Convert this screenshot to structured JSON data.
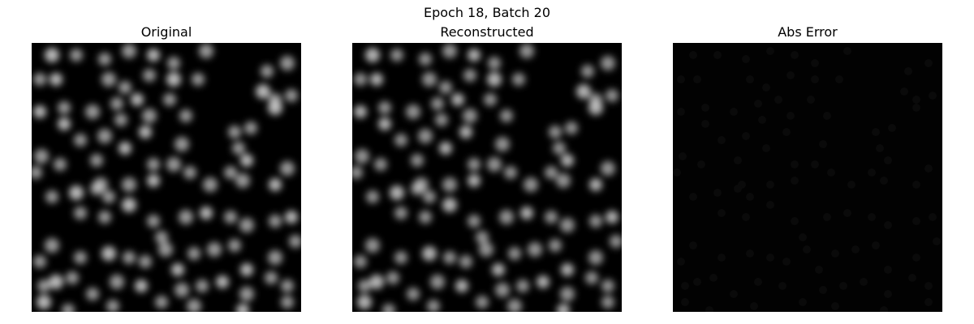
{
  "figure": {
    "suptitle": "Epoch 18, Batch 20",
    "panels": [
      {
        "title": "Original",
        "content": "grayscale image of blurred bright dots on black background"
      },
      {
        "title": "Reconstructed",
        "content": "grayscale reconstruction, nearly identical to original"
      },
      {
        "title": "Abs Error",
        "content": "near-black absolute error map"
      }
    ]
  },
  "colors": {
    "background": "#ffffff",
    "image_background": "#000000",
    "dot_color": "#d9d9d9",
    "error_background": "#020202"
  }
}
